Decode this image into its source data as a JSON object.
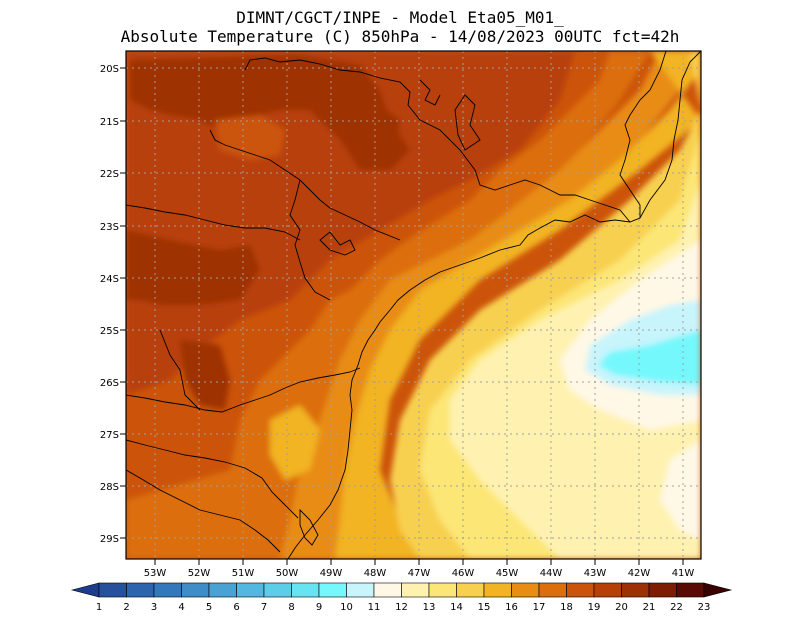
{
  "title": {
    "line1": "DIMNT/CGCT/INPE -  Model Eta05_M01_",
    "line2": "Absolute Temperature (C) 850hPa -  14/08/2023 00UTC fct=42h"
  },
  "map": {
    "lat_labels": [
      "20S",
      "21S",
      "22S",
      "23S",
      "24S",
      "25S",
      "26S",
      "27S",
      "28S",
      "29S"
    ],
    "lon_labels": [
      "53W",
      "52W",
      "51W",
      "50W",
      "49W",
      "48W",
      "47W",
      "46W",
      "45W",
      "44W",
      "43W",
      "42W",
      "41W"
    ]
  },
  "colorbar": {
    "labels": [
      "1",
      "2",
      "3",
      "4",
      "5",
      "6",
      "7",
      "8",
      "9",
      "10",
      "11",
      "12",
      "13",
      "14",
      "15",
      "16",
      "17",
      "18",
      "19",
      "20",
      "21",
      "22",
      "23"
    ],
    "colors": [
      "#1e3c8c",
      "#24509e",
      "#2c64ae",
      "#3478bc",
      "#3e8cc8",
      "#48a2d4",
      "#52b8e0",
      "#5ccee8",
      "#66e4f2",
      "#74f8fc",
      "#c8f4fc",
      "#fff8e6",
      "#fff2b0",
      "#fce676",
      "#f8d050",
      "#f2b424",
      "#e88c14",
      "#dc6e0c",
      "#cc540a",
      "#b84008",
      "#9e3006",
      "#7e1c06",
      "#5a0a04",
      "#3a0000"
    ]
  }
}
